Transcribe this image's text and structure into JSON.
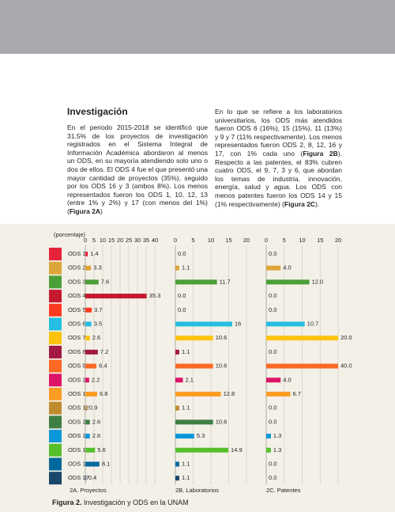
{
  "article": {
    "heading": "Investigación",
    "left_parts": [
      "En el periodo 2015-2018 se identificó que 31.5% de los proyectos de investigación registrados en el Sistema Integral de Información Académica abordaron al menos un ODS, en su mayoría atendiendo solo uno o dos de ellos. El ODS 4 fue el que presentó una mayor cantidad de proyectos (35%), seguido por los ODS 16 y 3 (ambos 8%). Los menos representados fueron los ODS 1, 10, 12, 13 (entre 1% y 2%) y 17 (con menos del 1%) (",
      "Figura 2A",
      ")"
    ],
    "right_parts": [
      "En lo que se refiere a los laboratorios universitarios, los ODS más atendidos fueron ODS 6 (16%), 15 (15%), 11 (13%) y 9 y 7 (11% respectivamente). Los menos representados fueron ODS 2, 8, 12, 16 y 17, con 1% cada uno (",
      "Figura 2B",
      "). Respecto a las patentes, el 83% cubren cuatro ODS, el 9, 7, 3 y 6, que abordan los temas de industria, innovación, energía, salud y agua. Los ODS con menos patentes fueron los ODS 14 y 15 (1% respectivamente) (",
      "Figura 2C",
      ")."
    ]
  },
  "caption": {
    "label": "Figura 2.",
    "text": "Investigación y ODS en la UNAM"
  },
  "chart_data": [
    {
      "type": "hbar",
      "title": "2A. Proyectos",
      "unit_label": "(porcentaje)",
      "categories": [
        "ODS 1",
        "ODS 2",
        "ODS 3",
        "ODS 4",
        "ODS 5",
        "ODS 6",
        "ODS 7",
        "ODS 8",
        "ODS 9",
        "ODS 10",
        "ODS 11",
        "ODS 12",
        "ODS 13",
        "ODS 14",
        "ODS 15",
        "ODS 16",
        "ODS 17"
      ],
      "colors": [
        "#e5243b",
        "#dda63a",
        "#4c9f38",
        "#c5192d",
        "#ff3a21",
        "#26bde2",
        "#fcc30b",
        "#a21942",
        "#fd6925",
        "#dd1367",
        "#fd9d24",
        "#bf8b2e",
        "#3f7e44",
        "#0a97d9",
        "#56c02b",
        "#00689d",
        "#19486a"
      ],
      "values": [
        1.4,
        3.3,
        7.6,
        35.3,
        3.7,
        3.5,
        2.6,
        7.2,
        6.4,
        2.2,
        6.8,
        0.9,
        2.6,
        2.6,
        5.6,
        8.1,
        0.4
      ],
      "value_labels": [
        "1.4",
        "3.3",
        "7.6",
        "35.3",
        "3.7",
        "3.5",
        "2.6",
        "7.2",
        "6.4",
        "2.2",
        "6.8",
        "0.9",
        "2.6",
        "2.6",
        "5.6",
        "8.1",
        "0.4"
      ],
      "xlim": [
        0,
        40
      ],
      "xticks": [
        0,
        5,
        10,
        15,
        20,
        25,
        30,
        35,
        40
      ],
      "grid": true
    },
    {
      "type": "hbar",
      "title": "2B. Laboratorios",
      "values": [
        0.0,
        1.1,
        11.7,
        0.0,
        0.0,
        16,
        10.6,
        1.1,
        10.6,
        2.1,
        12.8,
        1.1,
        10.6,
        5.3,
        14.9,
        1.1,
        1.1
      ],
      "value_labels": [
        "0.0",
        "1.1",
        "11.7",
        "0.0",
        "0.0",
        "16",
        "10.6",
        "1.1",
        "10.6",
        "2.1",
        "12.8",
        "1.1",
        "10.6",
        "5.3",
        "14.9",
        "1.1",
        "1.1"
      ],
      "xlim": [
        0,
        20
      ],
      "xticks": [
        0,
        5,
        10,
        15,
        20
      ],
      "grid": true
    },
    {
      "type": "hbar",
      "title": "2C. Patentes",
      "values": [
        0.0,
        4.0,
        12.0,
        0.0,
        0.0,
        10.7,
        20.0,
        0.0,
        40.0,
        4.0,
        6.7,
        0.0,
        0.0,
        1.3,
        1.3,
        0.0,
        0.0
      ],
      "value_labels": [
        "0.0",
        "4.0",
        "12.0",
        "0.0",
        "0.0",
        "10.7",
        "20.0",
        "0.0",
        "40.0",
        "4.0",
        "6.7",
        "0.0",
        "0.0",
        "1.3",
        "1.3",
        "0.0",
        "0.0"
      ],
      "xlim": [
        0,
        20
      ],
      "xticks": [
        0,
        5,
        10,
        15,
        20
      ],
      "grid": true
    }
  ]
}
